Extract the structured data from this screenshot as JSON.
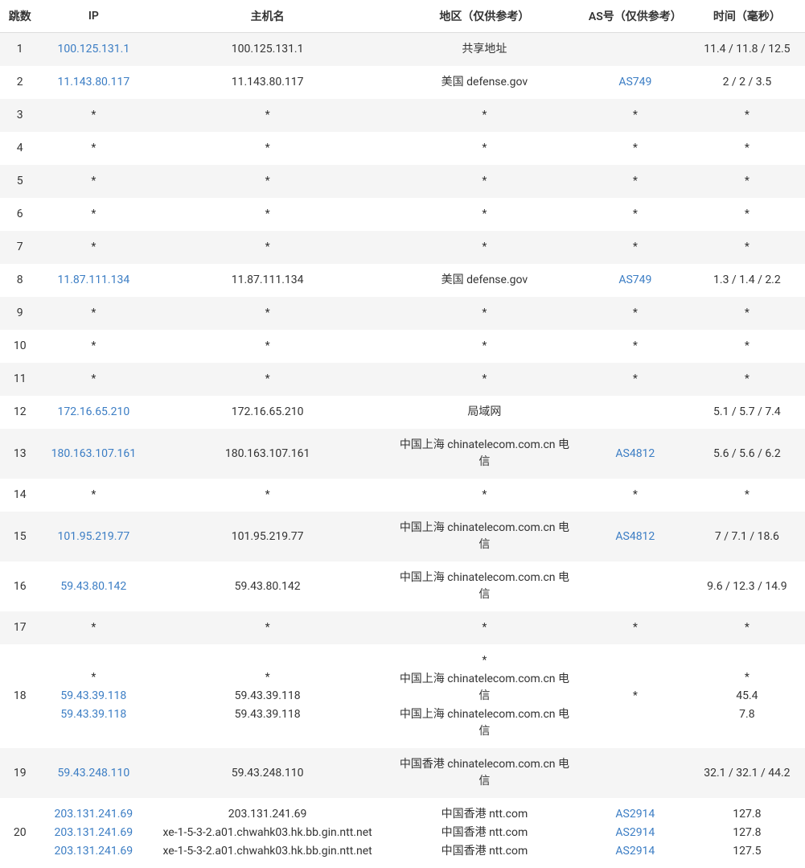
{
  "columns": {
    "hop": "跳数",
    "ip": "IP",
    "host": "主机名",
    "region": "地区（仅供参考）",
    "as": "AS号（仅供参考）",
    "time": "时间（毫秒）"
  },
  "rows": [
    {
      "hop": "1",
      "ip": [
        "100.125.131.1"
      ],
      "ip_link": [
        true
      ],
      "host": [
        "100.125.131.1"
      ],
      "region": [
        "共享地址"
      ],
      "as": [
        ""
      ],
      "as_link": [
        false
      ],
      "time": [
        "11.4 / 11.8 / 12.5"
      ]
    },
    {
      "hop": "2",
      "ip": [
        "11.143.80.117"
      ],
      "ip_link": [
        true
      ],
      "host": [
        "11.143.80.117"
      ],
      "region": [
        "美国 defense.gov"
      ],
      "as": [
        "AS749"
      ],
      "as_link": [
        true
      ],
      "time": [
        "2 / 2 / 3.5"
      ]
    },
    {
      "hop": "3",
      "ip": [
        "*"
      ],
      "ip_link": [
        false
      ],
      "host": [
        "*"
      ],
      "region": [
        "*"
      ],
      "as": [
        "*"
      ],
      "as_link": [
        false
      ],
      "time": [
        "*"
      ]
    },
    {
      "hop": "4",
      "ip": [
        "*"
      ],
      "ip_link": [
        false
      ],
      "host": [
        "*"
      ],
      "region": [
        "*"
      ],
      "as": [
        "*"
      ],
      "as_link": [
        false
      ],
      "time": [
        "*"
      ]
    },
    {
      "hop": "5",
      "ip": [
        "*"
      ],
      "ip_link": [
        false
      ],
      "host": [
        "*"
      ],
      "region": [
        "*"
      ],
      "as": [
        "*"
      ],
      "as_link": [
        false
      ],
      "time": [
        "*"
      ]
    },
    {
      "hop": "6",
      "ip": [
        "*"
      ],
      "ip_link": [
        false
      ],
      "host": [
        "*"
      ],
      "region": [
        "*"
      ],
      "as": [
        "*"
      ],
      "as_link": [
        false
      ],
      "time": [
        "*"
      ]
    },
    {
      "hop": "7",
      "ip": [
        "*"
      ],
      "ip_link": [
        false
      ],
      "host": [
        "*"
      ],
      "region": [
        "*"
      ],
      "as": [
        "*"
      ],
      "as_link": [
        false
      ],
      "time": [
        "*"
      ]
    },
    {
      "hop": "8",
      "ip": [
        "11.87.111.134"
      ],
      "ip_link": [
        true
      ],
      "host": [
        "11.87.111.134"
      ],
      "region": [
        "美国 defense.gov"
      ],
      "as": [
        "AS749"
      ],
      "as_link": [
        true
      ],
      "time": [
        "1.3 / 1.4 / 2.2"
      ]
    },
    {
      "hop": "9",
      "ip": [
        "*"
      ],
      "ip_link": [
        false
      ],
      "host": [
        "*"
      ],
      "region": [
        "*"
      ],
      "as": [
        "*"
      ],
      "as_link": [
        false
      ],
      "time": [
        "*"
      ]
    },
    {
      "hop": "10",
      "ip": [
        "*"
      ],
      "ip_link": [
        false
      ],
      "host": [
        "*"
      ],
      "region": [
        "*"
      ],
      "as": [
        "*"
      ],
      "as_link": [
        false
      ],
      "time": [
        "*"
      ]
    },
    {
      "hop": "11",
      "ip": [
        "*"
      ],
      "ip_link": [
        false
      ],
      "host": [
        "*"
      ],
      "region": [
        "*"
      ],
      "as": [
        "*"
      ],
      "as_link": [
        false
      ],
      "time": [
        "*"
      ]
    },
    {
      "hop": "12",
      "ip": [
        "172.16.65.210"
      ],
      "ip_link": [
        true
      ],
      "host": [
        "172.16.65.210"
      ],
      "region": [
        "局域网"
      ],
      "as": [
        ""
      ],
      "as_link": [
        false
      ],
      "time": [
        "5.1 / 5.7 / 7.4"
      ]
    },
    {
      "hop": "13",
      "ip": [
        "180.163.107.161"
      ],
      "ip_link": [
        true
      ],
      "host": [
        "180.163.107.161"
      ],
      "region": [
        "中国上海 chinatelecom.com.cn 电信"
      ],
      "as": [
        "AS4812"
      ],
      "as_link": [
        true
      ],
      "time": [
        "5.6 / 5.6 / 6.2"
      ]
    },
    {
      "hop": "14",
      "ip": [
        "*"
      ],
      "ip_link": [
        false
      ],
      "host": [
        "*"
      ],
      "region": [
        "*"
      ],
      "as": [
        "*"
      ],
      "as_link": [
        false
      ],
      "time": [
        "*"
      ]
    },
    {
      "hop": "15",
      "ip": [
        "101.95.219.77"
      ],
      "ip_link": [
        true
      ],
      "host": [
        "101.95.219.77"
      ],
      "region": [
        "中国上海 chinatelecom.com.cn 电信"
      ],
      "as": [
        "AS4812"
      ],
      "as_link": [
        true
      ],
      "time": [
        "7 / 7.1 / 18.6"
      ]
    },
    {
      "hop": "16",
      "ip": [
        "59.43.80.142"
      ],
      "ip_link": [
        true
      ],
      "host": [
        "59.43.80.142"
      ],
      "region": [
        "中国上海 chinatelecom.com.cn 电信"
      ],
      "as": [
        ""
      ],
      "as_link": [
        false
      ],
      "time": [
        "9.6 / 12.3 / 14.9"
      ]
    },
    {
      "hop": "17",
      "ip": [
        "*"
      ],
      "ip_link": [
        false
      ],
      "host": [
        "*"
      ],
      "region": [
        "*"
      ],
      "as": [
        "*"
      ],
      "as_link": [
        false
      ],
      "time": [
        "*"
      ]
    },
    {
      "hop": "18",
      "ip": [
        "*",
        "59.43.39.118",
        "59.43.39.118"
      ],
      "ip_link": [
        false,
        true,
        true
      ],
      "host": [
        "*",
        "59.43.39.118",
        "59.43.39.118"
      ],
      "region": [
        "*",
        "中国上海 chinatelecom.com.cn 电信",
        "中国上海 chinatelecom.com.cn 电信"
      ],
      "as": [
        "*"
      ],
      "as_link": [
        false
      ],
      "time": [
        "*",
        "45.4",
        "7.8"
      ]
    },
    {
      "hop": "19",
      "ip": [
        "59.43.248.110"
      ],
      "ip_link": [
        true
      ],
      "host": [
        "59.43.248.110"
      ],
      "region": [
        "中国香港 chinatelecom.com.cn 电信"
      ],
      "as": [
        ""
      ],
      "as_link": [
        false
      ],
      "time": [
        "32.1 / 32.1 / 44.2"
      ]
    },
    {
      "hop": "20",
      "ip": [
        "203.131.241.69",
        "203.131.241.69",
        "203.131.241.69"
      ],
      "ip_link": [
        true,
        true,
        true
      ],
      "host": [
        "203.131.241.69",
        "xe-1-5-3-2.a01.chwahk03.hk.bb.gin.ntt.net",
        "xe-1-5-3-2.a01.chwahk03.hk.bb.gin.ntt.net"
      ],
      "region": [
        "中国香港 ntt.com",
        "中国香港 ntt.com",
        "中国香港 ntt.com"
      ],
      "as": [
        "AS2914",
        "AS2914",
        "AS2914"
      ],
      "as_link": [
        true,
        true,
        true
      ],
      "time": [
        "127.8",
        "127.8",
        "127.5"
      ]
    }
  ]
}
